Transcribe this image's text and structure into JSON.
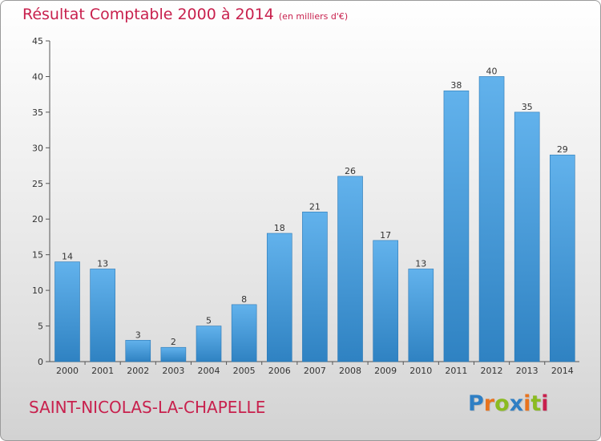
{
  "header": {
    "title": "Résultat Comptable 2000 à 2014",
    "subtitle": "(en milliers d'€)"
  },
  "footer": {
    "commune": "SAINT-NICOLAS-LA-CHAPELLE",
    "logo_text": "Proxiti",
    "logo_colors": [
      "#2f7fc4",
      "#e8731e",
      "#8bbb21",
      "#2f7fc4",
      "#e8731e",
      "#8bbb21",
      "#c8204d"
    ]
  },
  "chart_data": {
    "type": "bar",
    "title": "Résultat Comptable 2000 à 2014",
    "subtitle": "(en milliers d'€)",
    "xlabel": "",
    "ylabel": "",
    "categories": [
      "2000",
      "2001",
      "2002",
      "2003",
      "2004",
      "2005",
      "2006",
      "2007",
      "2008",
      "2009",
      "2010",
      "2011",
      "2012",
      "2013",
      "2014"
    ],
    "values": [
      14,
      13,
      3,
      2,
      5,
      8,
      18,
      21,
      26,
      17,
      13,
      38,
      40,
      35,
      29
    ],
    "ylim": [
      0,
      45
    ],
    "yticks": [
      0,
      5,
      10,
      15,
      20,
      25,
      30,
      35,
      40,
      45
    ],
    "grid": false,
    "bar_color_top": "#62b2ec",
    "bar_color_bottom": "#2f82c2",
    "show_value_labels": true
  }
}
